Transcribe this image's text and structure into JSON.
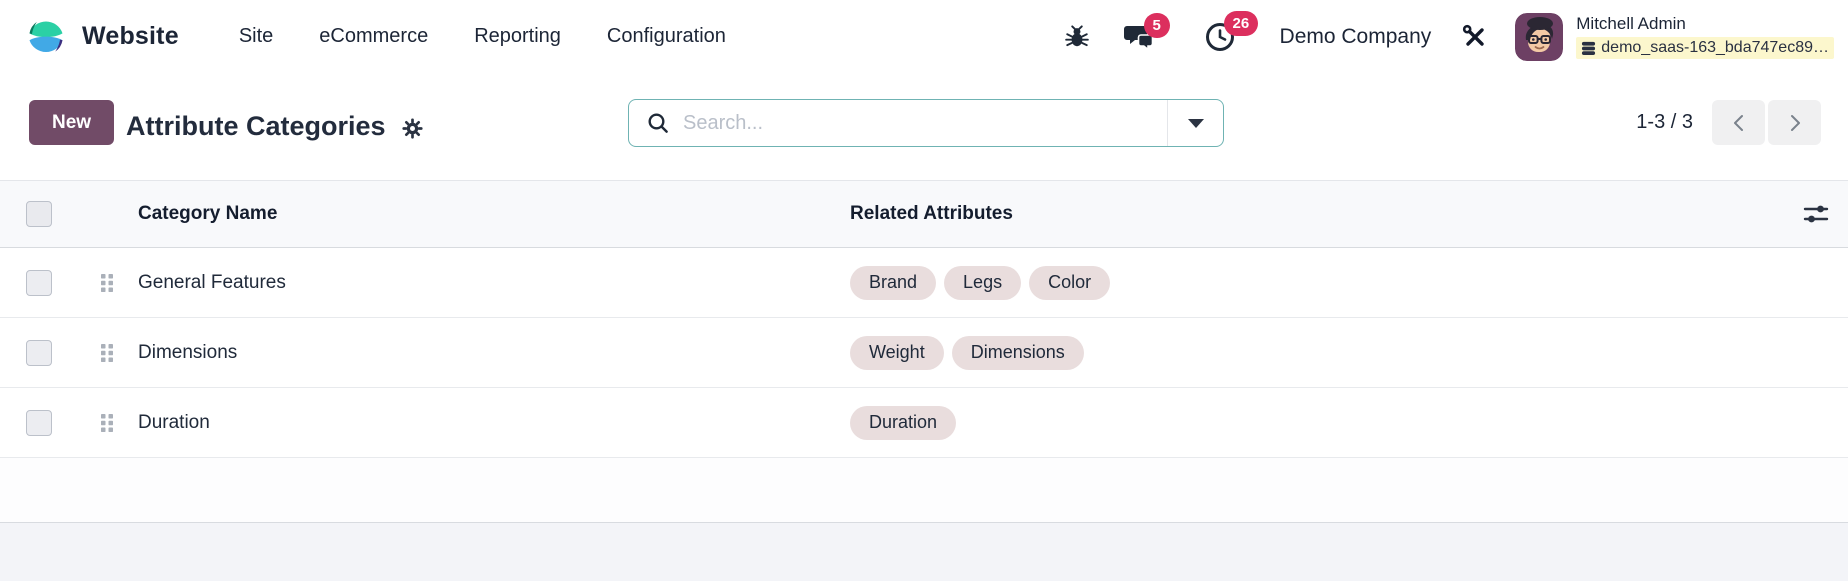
{
  "brand": {
    "app_name": "Website"
  },
  "nav": {
    "menus": [
      {
        "label": "Site"
      },
      {
        "label": "eCommerce"
      },
      {
        "label": "Reporting"
      },
      {
        "label": "Configuration"
      }
    ]
  },
  "systray": {
    "messages_count": "5",
    "activities_count": "26",
    "company": "Demo Company",
    "user_name": "Mitchell Admin",
    "database": "demo_saas-163_bda747ec89…"
  },
  "control_panel": {
    "new_label": "New",
    "title": "Attribute Categories",
    "search_placeholder": "Search...",
    "pager": "1-3 / 3"
  },
  "table": {
    "columns": [
      "Category Name",
      "Related Attributes"
    ],
    "rows": [
      {
        "name": "General Features",
        "attributes": [
          "Brand",
          "Legs",
          "Color"
        ]
      },
      {
        "name": "Dimensions",
        "attributes": [
          "Weight",
          "Dimensions"
        ]
      },
      {
        "name": "Duration",
        "attributes": [
          "Duration"
        ]
      }
    ]
  },
  "colors": {
    "primary": "#714B67",
    "badge": "#dc2f5e",
    "search_border": "#6fb3b3",
    "tag_bg": "#e9dddd",
    "db_highlight": "#fcf7cd",
    "text_dark": "#1c2536"
  }
}
